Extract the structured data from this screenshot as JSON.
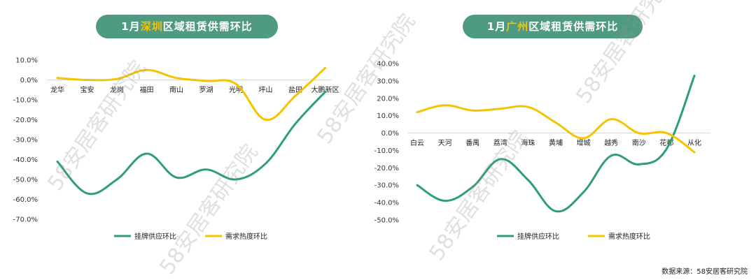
{
  "banners": {
    "left": {
      "prefix": "1月",
      "city": "深圳",
      "suffix": "区域租赁供需环比"
    },
    "right": {
      "prefix": "1月",
      "city": "广州",
      "suffix": "区域租赁供需环比"
    }
  },
  "source": "数据来源：58安居客研究院",
  "watermark": "58安居客研究院",
  "colors": {
    "supply": "#2e9e76",
    "demand": "#f5c400",
    "banner": "#4f9a82",
    "highlight": "#f5c400",
    "axis": "#d9d9d9"
  },
  "chart_data": [
    {
      "type": "line",
      "categories": [
        "龙华",
        "宝安",
        "龙岗",
        "福田",
        "南山",
        "罗湖",
        "光明",
        "坪山",
        "盐田",
        "大鹏新区"
      ],
      "ylim": [
        -70,
        10
      ],
      "yticks": [
        "10.0%",
        "0.0%",
        "-10.0%",
        "-20.0%",
        "-30.0%",
        "-40.0%",
        "-50.0%",
        "-60.0%",
        "-70.0%"
      ],
      "series": [
        {
          "name": "挂牌供应环比",
          "color": "#2e9e76",
          "values": [
            -41,
            -57,
            -50,
            -37,
            -49,
            -45,
            -50,
            -42,
            -22,
            -6
          ]
        },
        {
          "name": "需求热度环比",
          "color": "#f5c400",
          "values": [
            1,
            0,
            0.5,
            5,
            1,
            -0.5,
            -2,
            -20,
            -8,
            6
          ]
        }
      ]
    },
    {
      "type": "line",
      "categories": [
        "白云",
        "天河",
        "番禺",
        "荔湾",
        "海珠",
        "黄埔",
        "增城",
        "越秀",
        "南沙",
        "花都",
        "从化"
      ],
      "ylim": [
        -50,
        40
      ],
      "yticks": [
        "40.0%",
        "30.0%",
        "20.0%",
        "10.0%",
        "0.0%",
        "-10.0%",
        "-20.0%",
        "-30.0%",
        "-40.0%",
        "-50.0%"
      ],
      "series": [
        {
          "name": "挂牌供应环比",
          "color": "#2e9e76",
          "values": [
            -30,
            -39,
            -31,
            -15,
            -27,
            -45,
            -34,
            -13,
            -18,
            -9,
            33
          ]
        },
        {
          "name": "需求热度环比",
          "color": "#f5c400",
          "values": [
            12,
            16,
            13,
            14,
            15,
            6,
            -3,
            8,
            0,
            0,
            -11
          ]
        }
      ]
    }
  ]
}
